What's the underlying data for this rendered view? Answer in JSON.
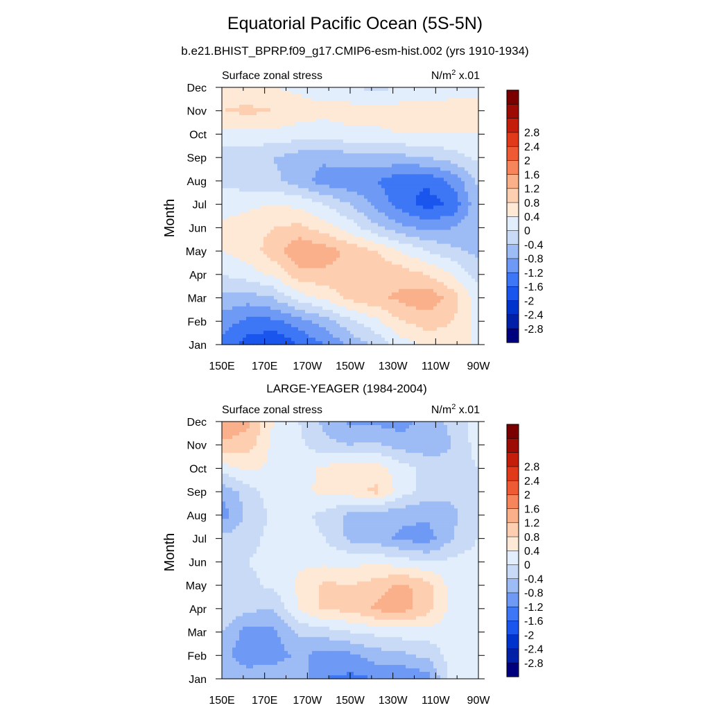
{
  "title": "Equatorial Pacific Ocean (5S-5N)",
  "subtitle": "b.e21.BHIST_BPRP.f09_g17.CMIP6-esm-hist.002 (yrs 1910-1934)",
  "colorbar": {
    "colors": [
      "#00007f",
      "#0020a8",
      "#0033cc",
      "#1a55ee",
      "#3d77f5",
      "#6e9af5",
      "#9dbbf5",
      "#c8daf5",
      "#e2eefb",
      "#fee8d6",
      "#fdcfb0",
      "#fbb08c",
      "#f7855c",
      "#ee5a33",
      "#e03a1a",
      "#c41e0a",
      "#9c0c05",
      "#7a0000"
    ],
    "levels": [
      -3.2,
      -2.8,
      -2.4,
      -2,
      -1.6,
      -1.2,
      -0.8,
      -0.4,
      0,
      0.4,
      0.8,
      1.2,
      1.6,
      2,
      2.4,
      2.8,
      3.2
    ],
    "tick_values": [
      -2.8,
      -2.4,
      -2,
      -1.6,
      -1.2,
      -0.8,
      -0.4,
      0,
      0.4,
      0.8,
      1.2,
      1.6,
      2,
      2.4,
      2.8
    ],
    "tick_labels": [
      "-2.8",
      "-2.4",
      "-2",
      "-1.6",
      "-1.2",
      "-0.8",
      "-0.4",
      "0",
      "0.4",
      "0.8",
      "1.2",
      "1.6",
      "2",
      "2.4",
      "2.8"
    ]
  },
  "chart_data": [
    {
      "type": "heatmap",
      "panel_title": "",
      "left_label": "Surface zonal stress",
      "units_label": "N/m",
      "units_sup": "2",
      "units_suffix": " x.01",
      "xlabel": "",
      "ylabel": "Month",
      "x_tick_labels": [
        "150E",
        "170E",
        "170W",
        "150W",
        "130W",
        "110W",
        "90W"
      ],
      "x_tick_values": [
        150,
        170,
        190,
        210,
        230,
        250,
        270
      ],
      "xlim": [
        150,
        270
      ],
      "y_tick_labels": [
        "Jan",
        "Feb",
        "Mar",
        "Apr",
        "May",
        "Jun",
        "Jul",
        "Aug",
        "Sep",
        "Oct",
        "Nov",
        "Dec"
      ],
      "ylim": [
        1,
        12
      ],
      "x": [
        150,
        162,
        174,
        186,
        198,
        210,
        222,
        234,
        246,
        258,
        270
      ],
      "y": [
        1,
        2,
        3,
        4,
        5,
        6,
        7,
        8,
        9,
        10,
        11,
        12
      ],
      "z": [
        [
          -1.3,
          -1.8,
          -2.0,
          -1.6,
          -1.2,
          -0.7,
          -0.3,
          0.2,
          0.5,
          0.6,
          0.3
        ],
        [
          -1.0,
          -1.3,
          -1.3,
          -1.0,
          -0.6,
          -0.1,
          0.3,
          0.8,
          1.0,
          0.8,
          0.3
        ],
        [
          -0.5,
          -0.6,
          -0.4,
          0.2,
          0.5,
          0.9,
          1.1,
          1.3,
          1.5,
          1.0,
          0.2
        ],
        [
          0.0,
          0.2,
          0.5,
          1.0,
          1.1,
          1.1,
          1.1,
          1.0,
          0.8,
          0.4,
          -0.2
        ],
        [
          0.4,
          0.6,
          1.0,
          1.6,
          1.4,
          1.1,
          0.8,
          0.4,
          0.0,
          -0.3,
          -0.5
        ],
        [
          0.5,
          0.6,
          0.8,
          0.9,
          0.6,
          0.2,
          -0.3,
          -0.7,
          -0.9,
          -0.8,
          -0.4
        ],
        [
          0.2,
          0.3,
          0.4,
          0.3,
          0.0,
          -0.4,
          -0.9,
          -1.4,
          -1.8,
          -1.5,
          -0.5
        ],
        [
          -0.1,
          -0.2,
          -0.3,
          -0.6,
          -1.0,
          -1.1,
          -1.2,
          -1.5,
          -1.5,
          -1.1,
          -0.3
        ],
        [
          -0.2,
          -0.3,
          -0.4,
          -0.6,
          -0.7,
          -0.6,
          -0.5,
          -0.5,
          -0.4,
          -0.2,
          0.1
        ],
        [
          0.3,
          0.3,
          0.3,
          0.2,
          0.2,
          0.3,
          0.3,
          0.4,
          0.4,
          0.4,
          0.4
        ],
        [
          0.8,
          0.9,
          0.8,
          0.6,
          0.5,
          0.6,
          0.6,
          0.6,
          0.6,
          0.6,
          0.6
        ],
        [
          0.5,
          0.5,
          0.4,
          0.3,
          0.2,
          0.0,
          -0.1,
          0.0,
          0.1,
          0.2,
          0.2
        ]
      ]
    },
    {
      "type": "heatmap",
      "panel_title": "LARGE-YEAGER (1984-2004)",
      "left_label": "Surface zonal stress",
      "units_label": "N/m",
      "units_sup": "2",
      "units_suffix": " x.01",
      "xlabel": "",
      "ylabel": "Month",
      "x_tick_labels": [
        "150E",
        "170E",
        "170W",
        "150W",
        "130W",
        "110W",
        "90W"
      ],
      "x_tick_values": [
        150,
        170,
        190,
        210,
        230,
        250,
        270
      ],
      "xlim": [
        150,
        270
      ],
      "y_tick_labels": [
        "Jan",
        "Feb",
        "Mar",
        "Apr",
        "May",
        "Jun",
        "Jul",
        "Aug",
        "Sep",
        "Oct",
        "Nov",
        "Dec"
      ],
      "ylim": [
        1,
        12
      ],
      "x": [
        150,
        162,
        174,
        186,
        198,
        210,
        222,
        234,
        246,
        258,
        270
      ],
      "y": [
        1,
        2,
        3,
        4,
        5,
        6,
        7,
        8,
        9,
        10,
        11,
        12
      ],
      "z": [
        [
          -0.5,
          -0.6,
          -0.5,
          -0.6,
          -1.2,
          -1.3,
          -1.2,
          -1.2,
          -1.0,
          0.2,
          0.2
        ],
        [
          -0.7,
          -1.0,
          -1.0,
          -0.7,
          -1.0,
          -0.9,
          -0.6,
          -0.5,
          -0.3,
          0.2,
          0.2
        ],
        [
          -0.4,
          -1.0,
          -0.9,
          -0.3,
          -0.2,
          0.0,
          0.1,
          0.2,
          0.2,
          0.2,
          0.2
        ],
        [
          0.0,
          -0.3,
          -0.4,
          0.4,
          0.9,
          0.9,
          1.3,
          1.4,
          1.0,
          0.2,
          0.2
        ],
        [
          -0.2,
          -0.1,
          0.1,
          0.5,
          0.9,
          0.8,
          1.0,
          1.3,
          1.0,
          0.2,
          0.2
        ],
        [
          -0.2,
          0.0,
          0.1,
          0.3,
          0.3,
          0.3,
          0.3,
          0.2,
          0.0,
          0.1,
          0.2
        ],
        [
          -0.3,
          -0.1,
          0.1,
          0.2,
          0.0,
          -0.5,
          -0.6,
          -0.9,
          -1.0,
          -0.4,
          0.0
        ],
        [
          -1.0,
          -0.3,
          0.1,
          0.1,
          -0.1,
          -0.5,
          -0.6,
          -0.7,
          -0.7,
          -0.5,
          0.0
        ],
        [
          -0.7,
          -0.2,
          0.2,
          0.3,
          0.5,
          0.6,
          0.9,
          0.2,
          -0.2,
          -0.3,
          0.0
        ],
        [
          0.2,
          0.5,
          0.3,
          0.2,
          0.5,
          0.6,
          0.6,
          0.2,
          -0.2,
          -0.3,
          0.0
        ],
        [
          1.1,
          1.0,
          0.3,
          0.1,
          -0.3,
          -0.4,
          -0.3,
          -0.6,
          -0.6,
          -0.4,
          0.2
        ],
        [
          1.6,
          1.3,
          0.4,
          0.0,
          -0.5,
          -0.9,
          -0.9,
          -1.0,
          -0.6,
          -0.3,
          0.2
        ]
      ]
    }
  ]
}
